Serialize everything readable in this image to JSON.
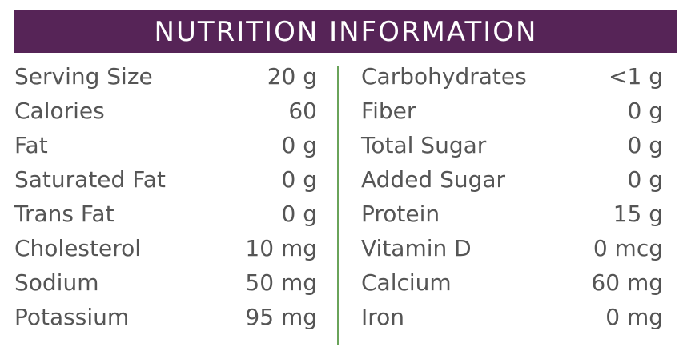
{
  "header": {
    "title": "NUTRITION INFORMATION"
  },
  "left": [
    [
      "Serving Size",
      "20 g"
    ],
    [
      "Calories",
      "60"
    ],
    [
      "Fat",
      "0 g"
    ],
    [
      "Saturated Fat",
      "0 g"
    ],
    [
      "Trans Fat",
      "0 g"
    ],
    [
      "Cholesterol",
      "10 mg"
    ],
    [
      "Sodium",
      "50 mg"
    ],
    [
      "Potassium",
      "95 mg"
    ]
  ],
  "right": [
    [
      "Carbohydrates",
      "<1 g"
    ],
    [
      "Fiber",
      "0 g"
    ],
    [
      "Total Sugar",
      "0 g"
    ],
    [
      "Added Sugar",
      "0 g"
    ],
    [
      "Protein",
      "15 g"
    ],
    [
      "Vitamin D",
      "0 mcg"
    ],
    [
      "Calcium",
      "60 mg"
    ],
    [
      "Iron",
      "0 mg"
    ]
  ]
}
